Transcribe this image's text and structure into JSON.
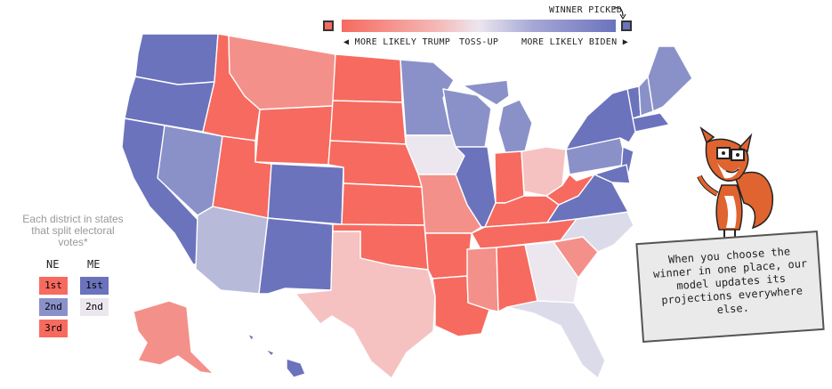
{
  "legend": {
    "winner_picked_label": "WINNER PICKED",
    "more_likely_trump": "◀ MORE LIKELY TRUMP",
    "toss_up": "TOSS-UP",
    "more_likely_biden": "MORE LIKELY BIDEN ▶",
    "colors": {
      "trump_picked": "#f76a5f",
      "likely_trump": "#f4908a",
      "lean_trump": "#f5c2c1",
      "toss_up": "#ece6ee",
      "lean_biden": "#b8bada",
      "likely_biden": "#8a91c9",
      "biden_picked": "#6b73bd"
    }
  },
  "districts": {
    "caption": "Each district in states that split electoral votes*",
    "ne_header": "NE",
    "me_header": "ME",
    "ne": [
      {
        "label": "1st",
        "color": "#f76a5f"
      },
      {
        "label": "2nd",
        "color": "#8a91c9"
      },
      {
        "label": "3rd",
        "color": "#f76a5f"
      }
    ],
    "me": [
      {
        "label": "1st",
        "color": "#6b73bd"
      },
      {
        "label": "2nd",
        "color": "#ece6ee"
      }
    ]
  },
  "callout": {
    "text": "When you choose the winner in one place, our model updates its projections everywhere else."
  },
  "mascot": "fox-mascot-with-glasses",
  "states": {
    "WA": "#6b73bd",
    "OR": "#6b73bd",
    "CA": "#6b73bd",
    "NV": "#8a91c9",
    "ID": "#f76a5f",
    "MT": "#f4908a",
    "WY": "#f76a5f",
    "UT": "#f76a5f",
    "AZ": "#b8bada",
    "CO": "#6b73bd",
    "NM": "#6b73bd",
    "ND": "#f76a5f",
    "SD": "#f76a5f",
    "NE": "#f76a5f",
    "KS": "#f76a5f",
    "OK": "#f76a5f",
    "TX": "#f5c2c1",
    "MN": "#8a91c9",
    "IA": "#ece6ee",
    "MO": "#f4908a",
    "AR": "#f76a5f",
    "LA": "#f76a5f",
    "WI": "#8a91c9",
    "IL": "#6b73bd",
    "MI": "#8a91c9",
    "IN": "#f76a5f",
    "OH": "#f5c2c1",
    "KY": "#f76a5f",
    "TN": "#f76a5f",
    "MS": "#f4908a",
    "AL": "#f76a5f",
    "GA": "#ece6ee",
    "FL": "#dcdbe9",
    "SC": "#f4908a",
    "NC": "#dcdbe9",
    "VA": "#6b73bd",
    "WV": "#f76a5f",
    "PA": "#8a91c9",
    "NY": "#6b73bd",
    "ME": "#8a91c9",
    "NH": "#8a91c9",
    "VT": "#6b73bd",
    "MA": "#6b73bd",
    "NJ": "#6b73bd",
    "MD": "#6b73bd",
    "AK": "#f4908a",
    "HI": "#6b73bd"
  }
}
